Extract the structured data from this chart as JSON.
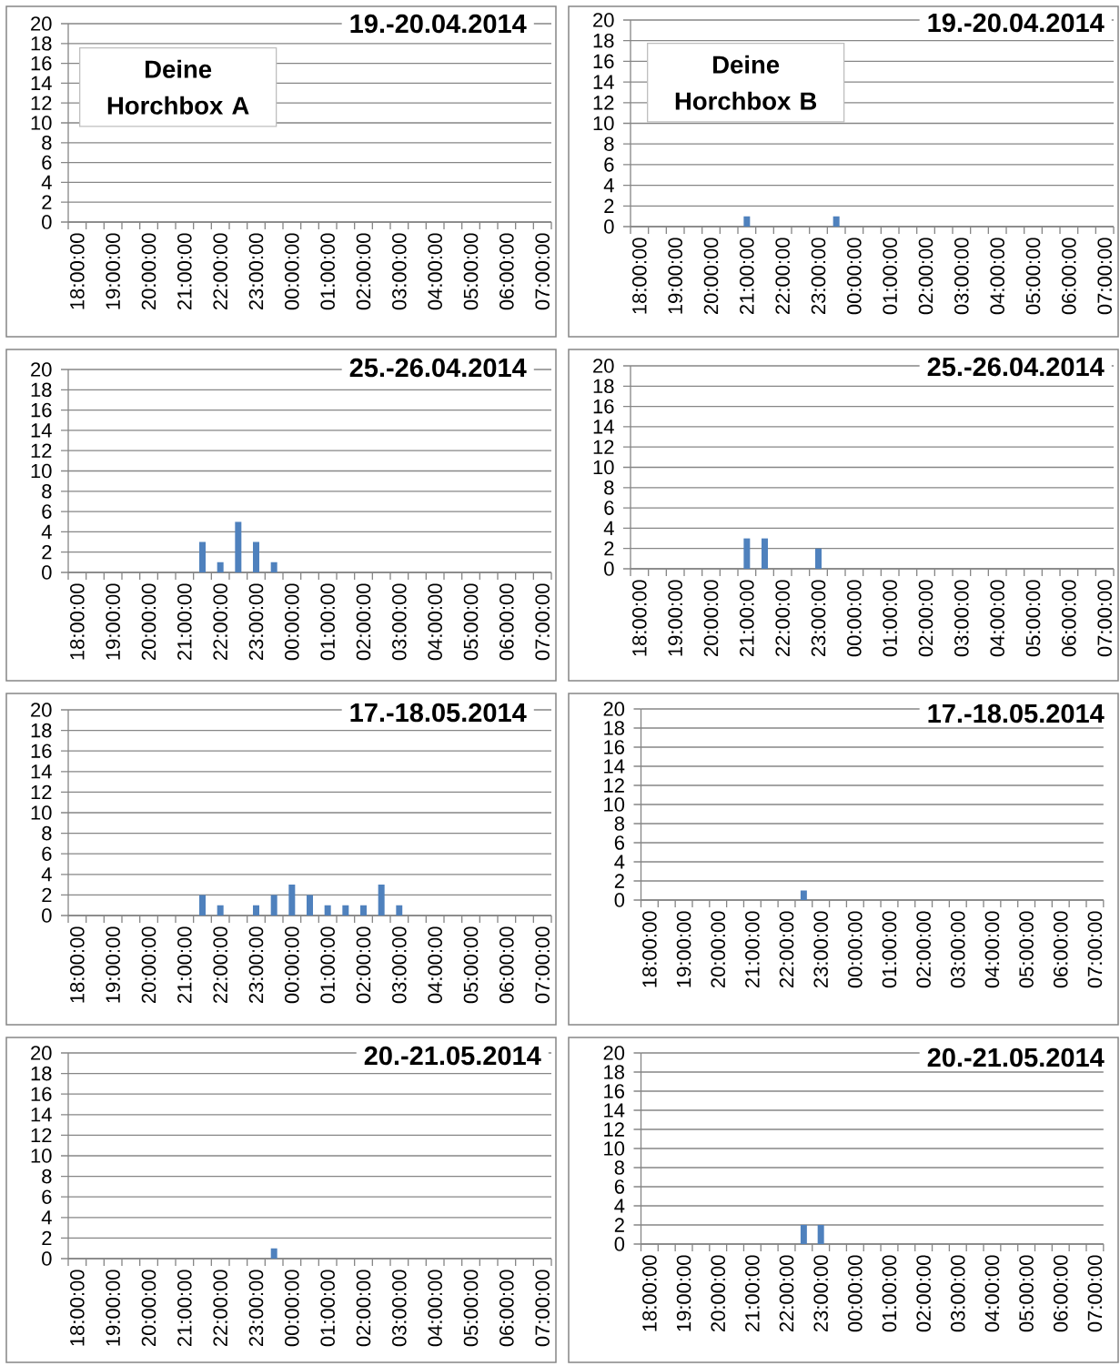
{
  "chart_data": [
    {
      "type": "bar",
      "title": "19.-20.04.2014",
      "categories": [
        "18:00:00",
        null,
        "19:00:00",
        null,
        "20:00:00",
        null,
        "21:00:00",
        null,
        "22:00:00",
        null,
        "23:00:00",
        null,
        "00:00:00",
        null,
        "01:00:00",
        null,
        "02:00:00",
        null,
        "03:00:00",
        null,
        "04:00:00",
        null,
        "05:00:00",
        null,
        "06:00:00",
        null,
        "07:00:00"
      ],
      "values": [
        null,
        null,
        null,
        null,
        null,
        null,
        null,
        null,
        null,
        null,
        null,
        null,
        null,
        null,
        null,
        null,
        null,
        null,
        null,
        null,
        null,
        null,
        null,
        null,
        null,
        null,
        null
      ],
      "color": "#4f81bd",
      "ylim": [
        0,
        20
      ],
      "yticks": [
        0,
        2,
        4,
        6,
        8,
        10,
        12,
        14,
        16,
        18,
        20
      ],
      "grid": "y",
      "annotations": [
        "Deine Horchbox A"
      ]
    },
    {
      "type": "bar",
      "title": "19.-20.04.2014",
      "categories": [
        "18:00:00",
        null,
        "19:00:00",
        null,
        "20:00:00",
        null,
        "21:00:00",
        null,
        "22:00:00",
        null,
        "23:00:00",
        null,
        "00:00:00",
        null,
        "01:00:00",
        null,
        "02:00:00",
        null,
        "03:00:00",
        null,
        "04:00:00",
        null,
        "05:00:00",
        null,
        "06:00:00",
        null,
        "07:00:00"
      ],
      "values": [
        null,
        null,
        null,
        null,
        null,
        null,
        1,
        null,
        null,
        null,
        null,
        1,
        null,
        null,
        null,
        null,
        null,
        null,
        null,
        null,
        null,
        null,
        null,
        null,
        null,
        null,
        null
      ],
      "color": "#4f81bd",
      "ylim": [
        0,
        20
      ],
      "yticks": [
        0,
        2,
        4,
        6,
        8,
        10,
        12,
        14,
        16,
        18,
        20
      ],
      "grid": "y",
      "annotations": [
        "Deine Horchbox B"
      ]
    },
    {
      "type": "bar",
      "title": "25.-26.04.2014",
      "categories": [
        "18:00:00",
        null,
        "19:00:00",
        null,
        "20:00:00",
        null,
        "21:00:00",
        null,
        "22:00:00",
        null,
        "23:00:00",
        null,
        "00:00:00",
        null,
        "01:00:00",
        null,
        "02:00:00",
        null,
        "03:00:00",
        null,
        "04:00:00",
        null,
        "05:00:00",
        null,
        "06:00:00",
        null,
        "07:00:00"
      ],
      "values": [
        null,
        null,
        null,
        null,
        null,
        null,
        null,
        3,
        1,
        5,
        3,
        1,
        null,
        null,
        null,
        null,
        null,
        null,
        null,
        null,
        null,
        null,
        null,
        null,
        null,
        null,
        null
      ],
      "color": "#4f81bd",
      "ylim": [
        0,
        20
      ],
      "yticks": [
        0,
        2,
        4,
        6,
        8,
        10,
        12,
        14,
        16,
        18,
        20
      ],
      "grid": "y"
    },
    {
      "type": "bar",
      "title": "25.-26.04.2014",
      "categories": [
        "18:00:00",
        null,
        "19:00:00",
        null,
        "20:00:00",
        null,
        "21:00:00",
        null,
        "22:00:00",
        null,
        "23:00:00",
        null,
        "00:00:00",
        null,
        "01:00:00",
        null,
        "02:00:00",
        null,
        "03:00:00",
        null,
        "04:00:00",
        null,
        "05:00:00",
        null,
        "06:00:00",
        null,
        "07:00:00"
      ],
      "values": [
        null,
        null,
        null,
        null,
        null,
        null,
        3,
        3,
        null,
        null,
        2,
        null,
        null,
        null,
        null,
        null,
        null,
        null,
        null,
        null,
        null,
        null,
        null,
        null,
        null,
        null,
        null
      ],
      "color": "#4f81bd",
      "ylim": [
        0,
        20
      ],
      "yticks": [
        0,
        2,
        4,
        6,
        8,
        10,
        12,
        14,
        16,
        18,
        20
      ],
      "grid": "y"
    },
    {
      "type": "bar",
      "title": "17.-18.05.2014",
      "categories": [
        "18:00:00",
        null,
        "19:00:00",
        null,
        "20:00:00",
        null,
        "21:00:00",
        null,
        "22:00:00",
        null,
        "23:00:00",
        null,
        "00:00:00",
        null,
        "01:00:00",
        null,
        "02:00:00",
        null,
        "03:00:00",
        null,
        "04:00:00",
        null,
        "05:00:00",
        null,
        "06:00:00",
        null,
        "07:00:00"
      ],
      "values": [
        null,
        null,
        null,
        null,
        null,
        null,
        null,
        2,
        1,
        null,
        1,
        2,
        3,
        2,
        1,
        1,
        1,
        3,
        1,
        null,
        null,
        null,
        null,
        null,
        null,
        null,
        null
      ],
      "color": "#4f81bd",
      "ylim": [
        0,
        20
      ],
      "yticks": [
        0,
        2,
        4,
        6,
        8,
        10,
        12,
        14,
        16,
        18,
        20
      ],
      "grid": "y"
    },
    {
      "type": "bar",
      "title": "17.-18.05.2014",
      "categories": [
        "18:00:00",
        null,
        "19:00:00",
        null,
        "20:00:00",
        null,
        "21:00:00",
        null,
        "22:00:00",
        null,
        "23:00:00",
        null,
        "00:00:00",
        null,
        "01:00:00",
        null,
        "02:00:00",
        null,
        "03:00:00",
        null,
        "04:00:00",
        null,
        "05:00:00",
        null,
        "06:00:00",
        null,
        "07:00:00"
      ],
      "values": [
        null,
        null,
        null,
        null,
        null,
        null,
        null,
        null,
        null,
        1,
        null,
        null,
        null,
        null,
        null,
        null,
        null,
        null,
        null,
        null,
        null,
        null,
        null,
        null,
        null,
        null,
        null
      ],
      "color": "#4f81bd",
      "ylim": [
        0,
        20
      ],
      "yticks": [
        0,
        2,
        4,
        6,
        8,
        10,
        12,
        14,
        16,
        18,
        20
      ],
      "grid": "y"
    },
    {
      "type": "bar",
      "title": "20.-21.05.2014",
      "categories": [
        "18:00:00",
        null,
        "19:00:00",
        null,
        "20:00:00",
        null,
        "21:00:00",
        null,
        "22:00:00",
        null,
        "23:00:00",
        null,
        "00:00:00",
        null,
        "01:00:00",
        null,
        "02:00:00",
        null,
        "03:00:00",
        null,
        "04:00:00",
        null,
        "05:00:00",
        null,
        "06:00:00",
        null,
        "07:00:00"
      ],
      "values": [
        null,
        null,
        null,
        null,
        null,
        null,
        null,
        null,
        null,
        null,
        null,
        1,
        null,
        null,
        null,
        null,
        null,
        null,
        null,
        null,
        null,
        null,
        null,
        null,
        null,
        null,
        null
      ],
      "color": "#4f81bd",
      "ylim": [
        0,
        20
      ],
      "yticks": [
        0,
        2,
        4,
        6,
        8,
        10,
        12,
        14,
        16,
        18,
        20
      ],
      "grid": "y"
    },
    {
      "type": "bar",
      "title": "20.-21.05.2014",
      "categories": [
        "18:00:00",
        null,
        "19:00:00",
        null,
        "20:00:00",
        null,
        "21:00:00",
        null,
        "22:00:00",
        null,
        "23:00:00",
        null,
        "00:00:00",
        null,
        "01:00:00",
        null,
        "02:00:00",
        null,
        "03:00:00",
        null,
        "04:00:00",
        null,
        "05:00:00",
        null,
        "06:00:00",
        null,
        "07:00:00"
      ],
      "values": [
        null,
        null,
        null,
        null,
        null,
        null,
        null,
        null,
        null,
        2,
        2,
        null,
        null,
        null,
        null,
        null,
        null,
        null,
        null,
        null,
        null,
        null,
        null,
        null,
        null,
        null,
        null
      ],
      "color": "#4f81bd",
      "ylim": [
        0,
        20
      ],
      "yticks": [
        0,
        2,
        4,
        6,
        8,
        10,
        12,
        14,
        16,
        18,
        20
      ],
      "grid": "y"
    }
  ]
}
